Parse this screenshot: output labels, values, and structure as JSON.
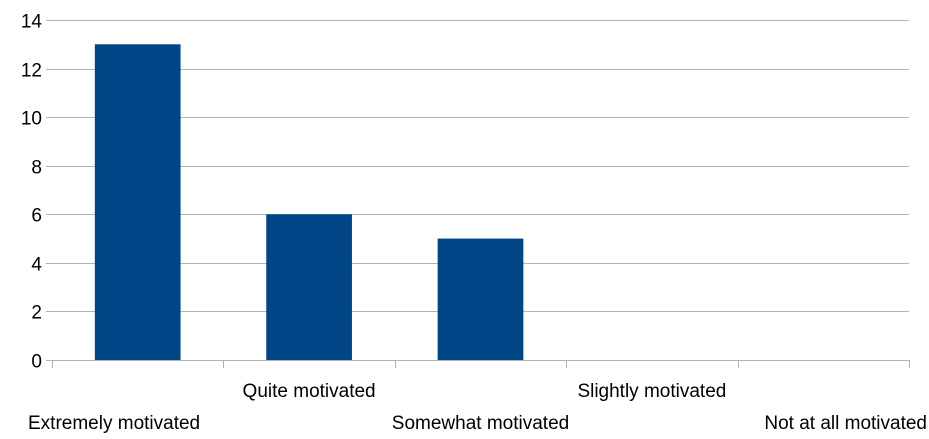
{
  "chart_data": {
    "type": "bar",
    "categories": [
      "Extremely motivated",
      "Quite motivated",
      "Somewhat motivated",
      "Slightly motivated",
      "Not at all motivated"
    ],
    "values": [
      13,
      6,
      5,
      0,
      0
    ],
    "title": "",
    "xlabel": "",
    "ylabel": "",
    "ylim": [
      0,
      14
    ],
    "yticks": [
      0,
      2,
      4,
      6,
      8,
      10,
      12,
      14
    ],
    "grid": true,
    "legend": "none",
    "bar_color": "#004586"
  }
}
